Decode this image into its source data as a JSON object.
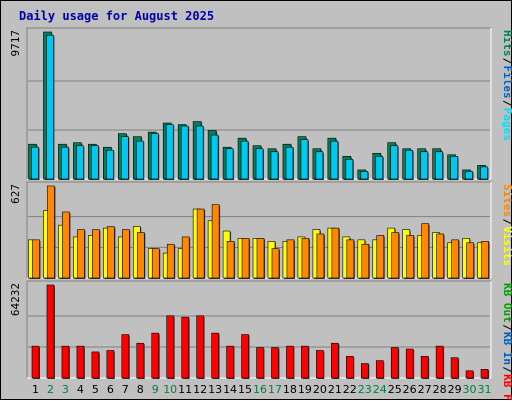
{
  "title": "Daily usage for August 2025",
  "colors": {
    "background": "#c0c0c0",
    "title": "#0000a8",
    "hits": "#00805a",
    "files": "#00c8f0",
    "pages": "#00e0ff",
    "visits": "#ffff00",
    "sites": "#ff8800",
    "kbin": "#ff0000",
    "weekend_day": "#008040",
    "weekday_day": "#000000"
  },
  "chart_data": [
    {
      "type": "bar",
      "panel": "hits-files-pages",
      "axis_max_label": "9717",
      "right_labels": [
        "Pages",
        "/",
        "Files",
        "/",
        "Hits"
      ],
      "ylim": [
        0,
        9717
      ],
      "categories": [
        "1",
        "2",
        "3",
        "4",
        "5",
        "6",
        "7",
        "8",
        "9",
        "10",
        "11",
        "12",
        "13",
        "14",
        "15",
        "16",
        "17",
        "18",
        "19",
        "20",
        "21",
        "22",
        "23",
        "24",
        "25",
        "26",
        "27",
        "28",
        "29",
        "30",
        "31"
      ],
      "series": [
        {
          "name": "Hits",
          "values": [
            2300,
            9717,
            2300,
            2400,
            2300,
            2100,
            3000,
            2800,
            3100,
            3700,
            3600,
            3800,
            3200,
            2100,
            2700,
            2200,
            2000,
            2300,
            2800,
            2000,
            2700,
            1500,
            600,
            1700,
            2400,
            2000,
            2000,
            2000,
            1600,
            600,
            900
          ]
        },
        {
          "name": "Files",
          "values": [
            2100,
            9500,
            2100,
            2200,
            2200,
            1900,
            2800,
            2500,
            3000,
            3600,
            3500,
            3500,
            2900,
            2000,
            2500,
            2000,
            1800,
            2100,
            2600,
            1800,
            2500,
            1300,
            500,
            1500,
            2200,
            1900,
            1800,
            1800,
            1500,
            500,
            800
          ]
        },
        {
          "name": "Pages",
          "values": [
            1400,
            6500,
            1400,
            1500,
            1400,
            1300,
            1900,
            1600,
            2000,
            2300,
            2300,
            2400,
            2000,
            1300,
            1700,
            1300,
            1200,
            1400,
            1700,
            1200,
            1700,
            900,
            400,
            1000,
            1500,
            1200,
            1200,
            1200,
            1000,
            400,
            600
          ]
        }
      ]
    },
    {
      "type": "bar",
      "panel": "visits-sites",
      "axis_max_label": "627",
      "right_labels": [
        "Visits",
        "/",
        "Sites"
      ],
      "ylim": [
        0,
        627
      ],
      "categories": [
        "1",
        "2",
        "3",
        "4",
        "5",
        "6",
        "7",
        "8",
        "9",
        "10",
        "11",
        "12",
        "13",
        "14",
        "15",
        "16",
        "17",
        "18",
        "19",
        "20",
        "21",
        "22",
        "23",
        "24",
        "25",
        "26",
        "27",
        "28",
        "29",
        "30",
        "31"
      ],
      "series": [
        {
          "name": "Visits",
          "values": [
            260,
            460,
            360,
            280,
            290,
            340,
            280,
            350,
            200,
            170,
            200,
            470,
            390,
            320,
            270,
            270,
            250,
            250,
            280,
            330,
            340,
            280,
            260,
            260,
            340,
            330,
            290,
            310,
            240,
            270,
            240
          ]
        },
        {
          "name": "Sites",
          "values": [
            260,
            627,
            450,
            330,
            330,
            350,
            330,
            310,
            200,
            230,
            280,
            470,
            500,
            250,
            270,
            270,
            200,
            260,
            270,
            300,
            340,
            260,
            230,
            290,
            310,
            290,
            370,
            300,
            260,
            240,
            250
          ]
        }
      ]
    },
    {
      "type": "bar",
      "panel": "kbin",
      "axis_max_label": "64232",
      "right_labels": [
        "KB F",
        "/",
        "KB In",
        "/",
        "KB Out"
      ],
      "ylim": [
        0,
        64232
      ],
      "categories": [
        "1",
        "2",
        "3",
        "4",
        "5",
        "6",
        "7",
        "8",
        "9",
        "10",
        "11",
        "12",
        "13",
        "14",
        "15",
        "16",
        "17",
        "18",
        "19",
        "20",
        "21",
        "22",
        "23",
        "24",
        "25",
        "26",
        "27",
        "28",
        "29",
        "30",
        "31"
      ],
      "series": [
        {
          "name": "KB F",
          "values": [
            22000,
            64232,
            22000,
            22000,
            18000,
            19000,
            30000,
            24000,
            31000,
            43000,
            42000,
            43000,
            31000,
            22000,
            30000,
            21000,
            21000,
            22000,
            22000,
            19000,
            24000,
            15000,
            10000,
            12000,
            21000,
            20000,
            15000,
            22000,
            14000,
            5000,
            6000
          ]
        }
      ]
    }
  ],
  "x_labels": [
    "1",
    "2",
    "3",
    "4",
    "5",
    "6",
    "7",
    "8",
    "9",
    "10",
    "11",
    "12",
    "13",
    "14",
    "15",
    "16",
    "17",
    "18",
    "19",
    "20",
    "21",
    "22",
    "23",
    "24",
    "25",
    "26",
    "27",
    "28",
    "29",
    "30",
    "31"
  ],
  "weekend_days": [
    "2",
    "3",
    "9",
    "10",
    "16",
    "17",
    "23",
    "24",
    "30",
    "31"
  ]
}
